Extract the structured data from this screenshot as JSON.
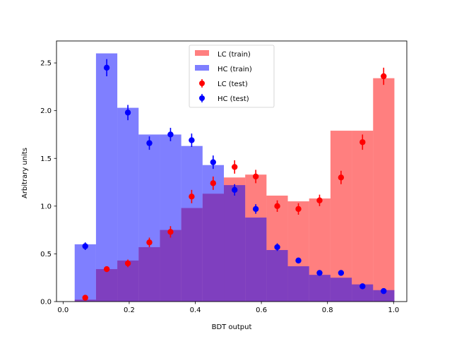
{
  "chart_data": {
    "type": "bar",
    "xlabel": "BDT output",
    "ylabel": "Arbitrary units",
    "xlim": [
      -0.02,
      1.04
    ],
    "ylim": [
      0,
      2.73
    ],
    "x_ticks": [
      0.0,
      0.2,
      0.4,
      0.6,
      0.8,
      1.0
    ],
    "x_tick_labels": [
      "0.0",
      "0.2",
      "0.4",
      "0.6",
      "0.8",
      "1.0"
    ],
    "y_ticks": [
      0.0,
      0.5,
      1.0,
      1.5,
      2.0,
      2.5
    ],
    "y_tick_labels": [
      "0.0",
      "0.5",
      "1.0",
      "1.5",
      "2.0",
      "2.5"
    ],
    "legend_position": "top-center",
    "bin_edges": [
      0.035,
      0.0995,
      0.164,
      0.2285,
      0.293,
      0.3575,
      0.422,
      0.4865,
      0.551,
      0.6155,
      0.68,
      0.7445,
      0.809,
      0.8735,
      0.938,
      1.0025
    ],
    "series": [
      {
        "name": "LC (train)",
        "kind": "hist",
        "color": "#ff8080",
        "values": [
          0.02,
          0.34,
          0.43,
          0.57,
          0.75,
          0.98,
          1.13,
          1.3,
          1.33,
          1.11,
          1.05,
          1.08,
          1.79,
          1.79,
          2.34
        ]
      },
      {
        "name": "HC (train)",
        "kind": "hist",
        "color": "#8080ff",
        "values": [
          0.6,
          2.6,
          2.03,
          1.75,
          1.75,
          1.63,
          1.43,
          1.22,
          0.88,
          0.54,
          0.37,
          0.28,
          0.25,
          0.18,
          0.12
        ]
      },
      {
        "name": "LC (test)",
        "kind": "points",
        "color": "#ff0000",
        "x": [
          0.067,
          0.132,
          0.196,
          0.261,
          0.325,
          0.389,
          0.454,
          0.519,
          0.583,
          0.648,
          0.712,
          0.776,
          0.841,
          0.906,
          0.97
        ],
        "values": [
          0.04,
          0.34,
          0.4,
          0.62,
          0.73,
          1.1,
          1.24,
          1.41,
          1.31,
          1.0,
          0.97,
          1.06,
          1.3,
          1.67,
          2.36
        ],
        "errors": [
          0.02,
          0.03,
          0.04,
          0.05,
          0.06,
          0.07,
          0.07,
          0.07,
          0.07,
          0.06,
          0.06,
          0.06,
          0.07,
          0.08,
          0.09
        ]
      },
      {
        "name": "HC (test)",
        "kind": "points",
        "color": "#0000ff",
        "x": [
          0.067,
          0.132,
          0.196,
          0.261,
          0.325,
          0.389,
          0.454,
          0.519,
          0.583,
          0.648,
          0.712,
          0.776,
          0.841,
          0.906,
          0.97
        ],
        "values": [
          0.58,
          2.45,
          1.98,
          1.66,
          1.75,
          1.69,
          1.46,
          1.17,
          0.97,
          0.57,
          0.43,
          0.3,
          0.3,
          0.16,
          0.11
        ],
        "errors": [
          0.04,
          0.09,
          0.08,
          0.07,
          0.07,
          0.07,
          0.07,
          0.06,
          0.05,
          0.04,
          0.03,
          0.03,
          0.03,
          0.02,
          0.02
        ]
      }
    ]
  }
}
